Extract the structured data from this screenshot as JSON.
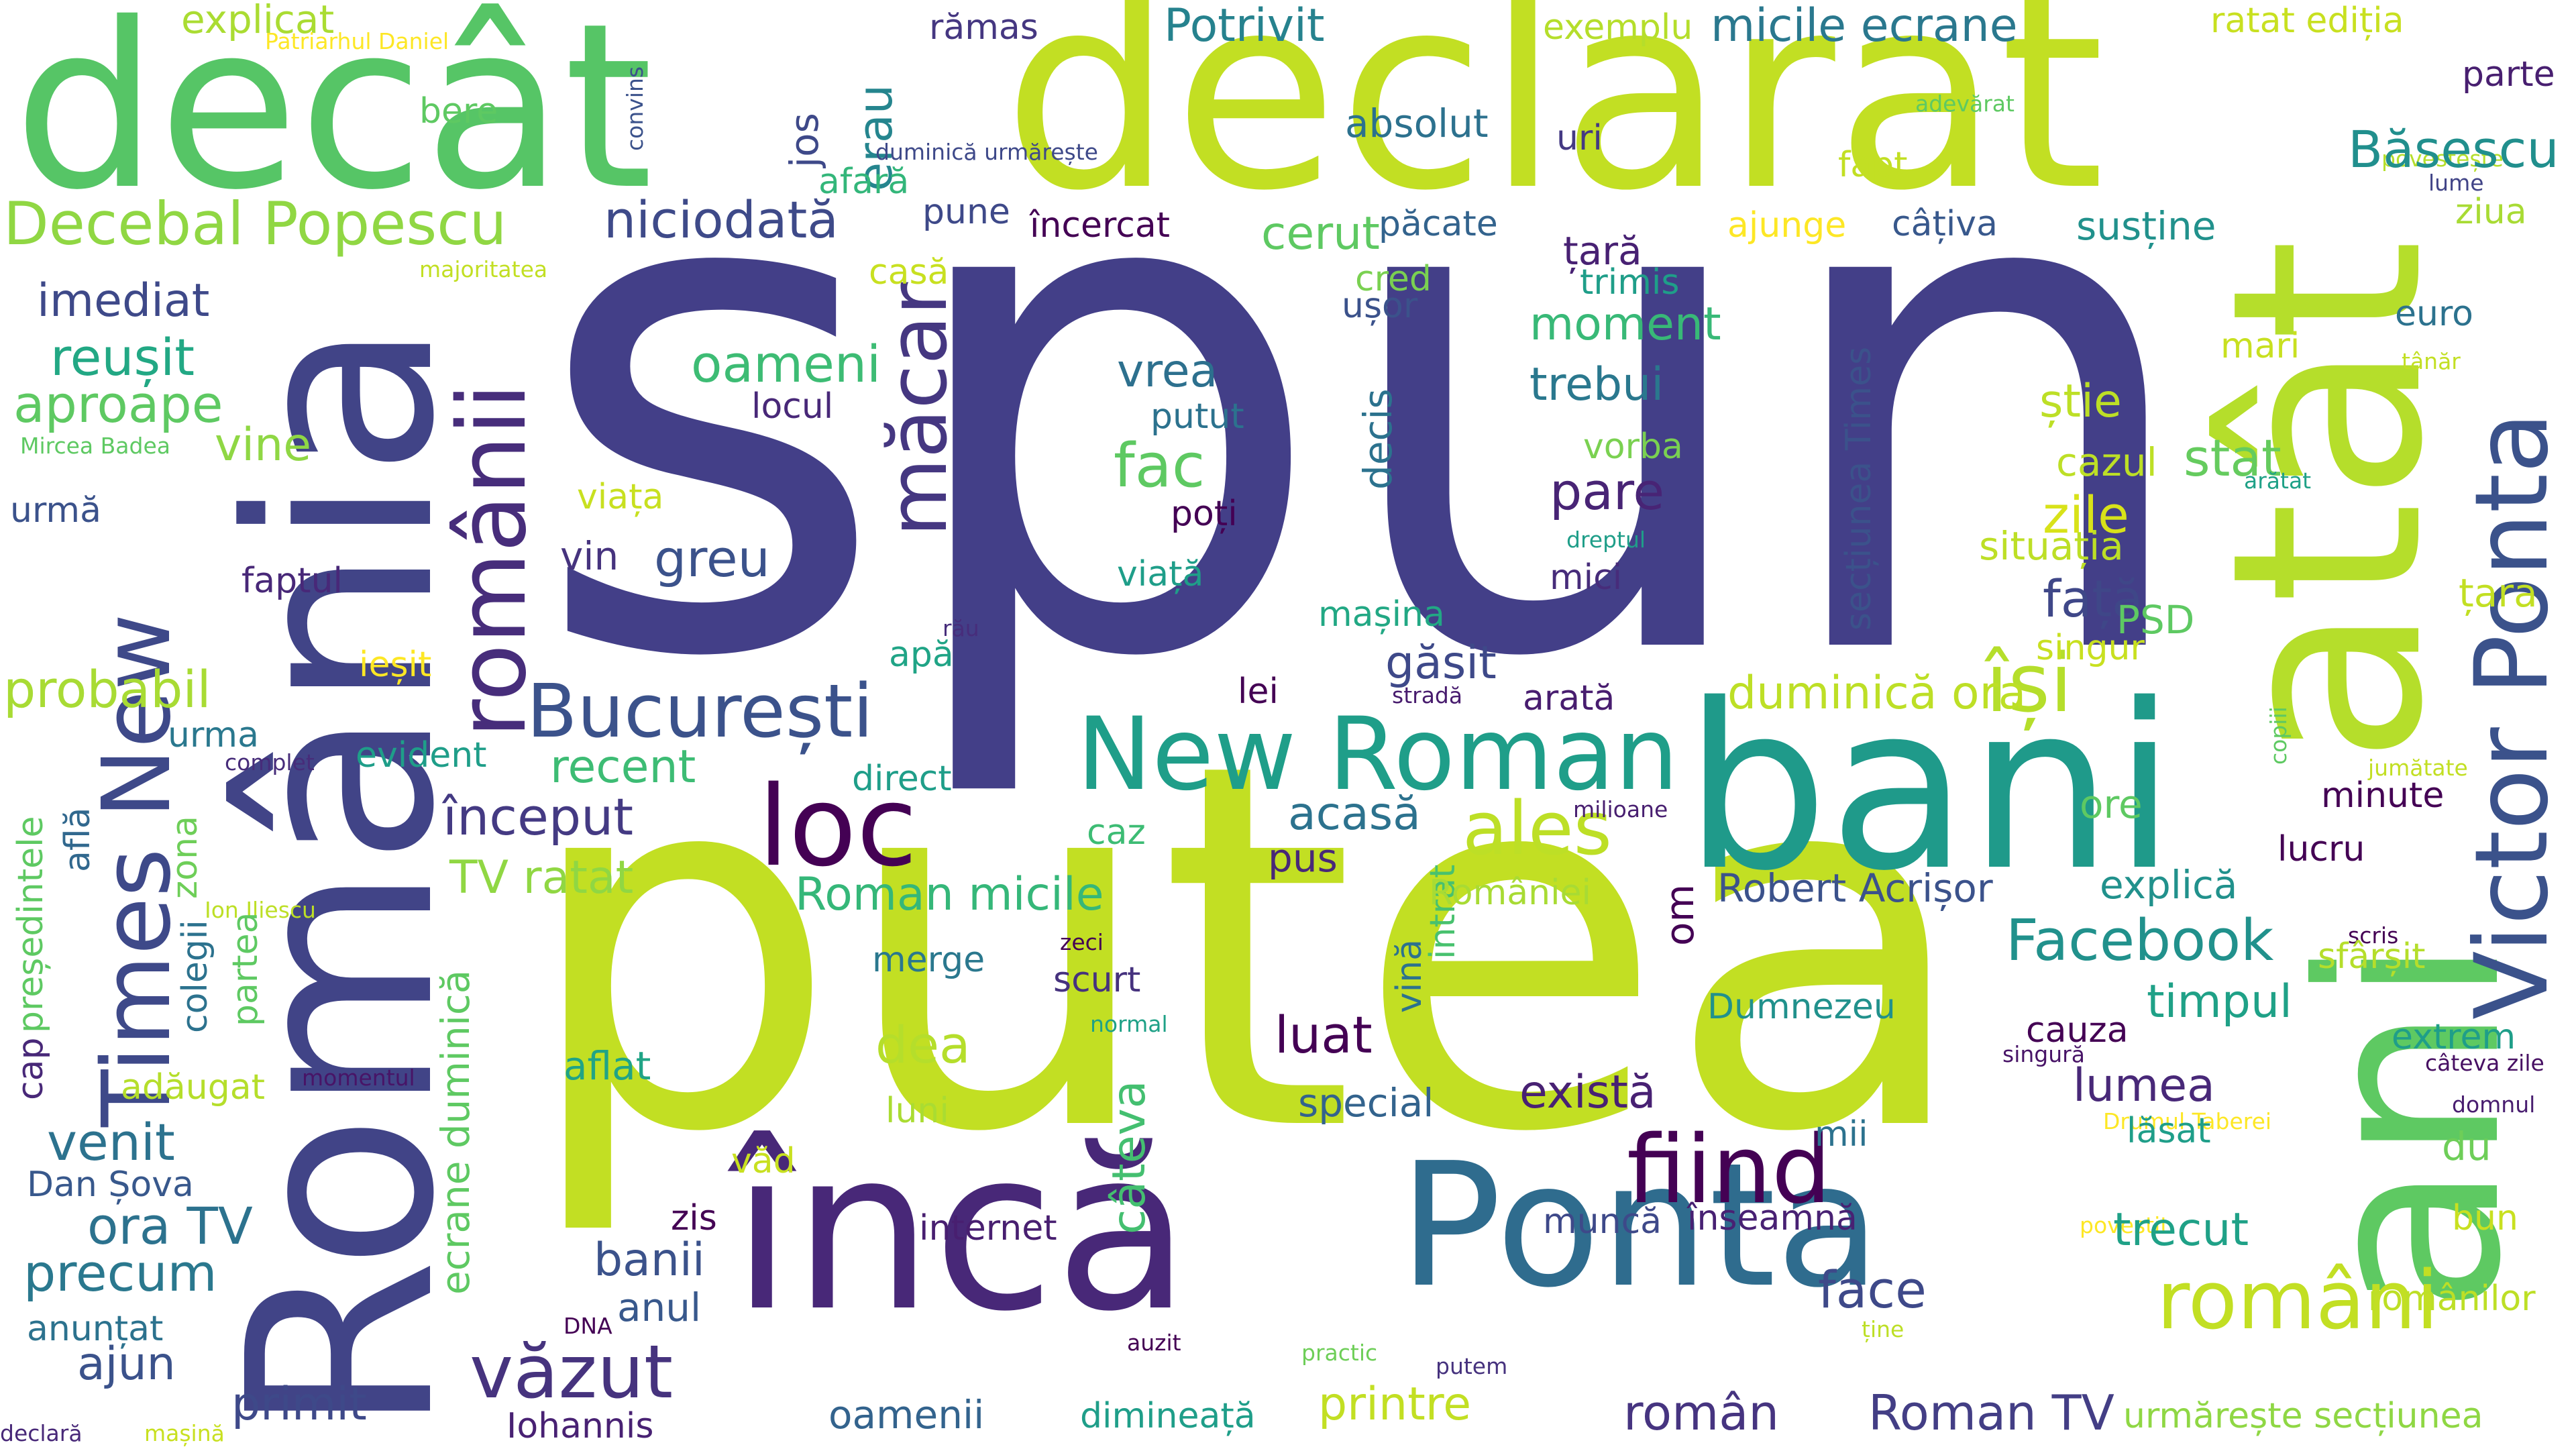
{
  "words": [
    {
      "text": "spun",
      "color": "#433f88"
    },
    {
      "text": "putea",
      "color": "#c2df23"
    },
    {
      "text": "declarat",
      "color": "#c2df23"
    },
    {
      "text": "decât",
      "color": "#56c566"
    },
    {
      "text": "România",
      "color": "#414487"
    },
    {
      "text": "atât",
      "color": "#b5de2b"
    },
    {
      "text": "ani",
      "color": "#5ec962"
    },
    {
      "text": "bani",
      "color": "#1f9a8a"
    },
    {
      "text": "încă",
      "color": "#482878"
    },
    {
      "text": "Ponta",
      "color": "#2f6c8e"
    },
    {
      "text": "New Roman",
      "color": "#1f9e89"
    },
    {
      "text": "Victor Ponta",
      "color": "#3b528b"
    },
    {
      "text": "Times New",
      "color": "#3e4989"
    },
    {
      "text": "românii",
      "color": "#472d7b"
    },
    {
      "text": "loc",
      "color": "#440154"
    },
    {
      "text": "fiind",
      "color": "#440154"
    },
    {
      "text": "români",
      "color": "#c2df23"
    },
    {
      "text": "București",
      "color": "#3b528b"
    },
    {
      "text": "Decebal Popescu",
      "color": "#90d743"
    },
    {
      "text": "văzut",
      "color": "#46337e"
    },
    {
      "text": "măcar",
      "color": "#453781"
    },
    {
      "text": "își",
      "color": "#b5de2b"
    },
    {
      "text": "ales",
      "color": "#bddf26"
    },
    {
      "text": "român",
      "color": "#463480"
    },
    {
      "text": "Roman TV",
      "color": "#433e85"
    },
    {
      "text": "Facebook",
      "color": "#21918c"
    },
    {
      "text": "niciodată",
      "color": "#3e4a89"
    },
    {
      "text": "explicat",
      "color": "#aadc32"
    },
    {
      "text": "Patriarhul Daniel",
      "color": "#fde725"
    },
    {
      "text": "jos",
      "color": "#3e4989"
    },
    {
      "text": "erau",
      "color": "#25858e"
    },
    {
      "text": "rămas",
      "color": "#453781"
    },
    {
      "text": "Potrivit",
      "color": "#26828e"
    },
    {
      "text": "exemplu",
      "color": "#b5de2b"
    },
    {
      "text": "micile ecrane",
      "color": "#2a788e"
    },
    {
      "text": "ratat ediția",
      "color": "#c8e020"
    },
    {
      "text": "parte",
      "color": "#481f70"
    },
    {
      "text": "convins",
      "color": "#3b528b"
    },
    {
      "text": "adevărat",
      "color": "#5ec962"
    },
    {
      "text": "povestește",
      "color": "#b5de2b"
    },
    {
      "text": "lume",
      "color": "#414487"
    },
    {
      "text": "Băsescu",
      "color": "#218f8d"
    },
    {
      "text": "bere",
      "color": "#5ec962"
    },
    {
      "text": "duminică urmărește",
      "color": "#3e4989"
    },
    {
      "text": "afară",
      "color": "#33b67a"
    },
    {
      "text": "absolut",
      "color": "#2c718e"
    },
    {
      "text": "uri",
      "color": "#443983"
    },
    {
      "text": "fapt",
      "color": "#c2df23"
    },
    {
      "text": "ziua",
      "color": "#a8db34"
    },
    {
      "text": "pune",
      "color": "#3e4989"
    },
    {
      "text": "încercat",
      "color": "#440154"
    },
    {
      "text": "cerut",
      "color": "#5ec962"
    },
    {
      "text": "păcate",
      "color": "#33638d"
    },
    {
      "text": "ajunge",
      "color": "#fde725"
    },
    {
      "text": "câțiva",
      "color": "#38588c"
    },
    {
      "text": "susține",
      "color": "#21918c"
    },
    {
      "text": "majoritatea",
      "color": "#c2df23"
    },
    {
      "text": "casă",
      "color": "#c8e020"
    },
    {
      "text": "țară",
      "color": "#482173"
    },
    {
      "text": "cred",
      "color": "#7ad151"
    },
    {
      "text": "ușor",
      "color": "#3b528b"
    },
    {
      "text": "trimis",
      "color": "#1f9e89"
    },
    {
      "text": "euro",
      "color": "#2c728e"
    },
    {
      "text": "imediat",
      "color": "#3e4989"
    },
    {
      "text": "secțiunea Times",
      "color": "#3b528b"
    },
    {
      "text": "tânăr",
      "color": "#c2df23"
    },
    {
      "text": "reușit",
      "color": "#22a884"
    },
    {
      "text": "moment",
      "color": "#38b977"
    },
    {
      "text": "mari",
      "color": "#c8e020"
    },
    {
      "text": "oameni",
      "color": "#3dbc74"
    },
    {
      "text": "aproape",
      "color": "#5ec962"
    },
    {
      "text": "vrea",
      "color": "#2d708e"
    },
    {
      "text": "trebui",
      "color": "#2a788e"
    },
    {
      "text": "locul",
      "color": "#482878"
    },
    {
      "text": "știe",
      "color": "#bddf26"
    },
    {
      "text": "vine",
      "color": "#8fd744"
    },
    {
      "text": "putut",
      "color": "#2c728e"
    },
    {
      "text": "Mircea Badea",
      "color": "#5ec962"
    },
    {
      "text": "fac",
      "color": "#5ec962"
    },
    {
      "text": "vorba",
      "color": "#7ad151"
    },
    {
      "text": "cazul",
      "color": "#bddf26"
    },
    {
      "text": "stat",
      "color": "#65cb5e"
    },
    {
      "text": "arătat",
      "color": "#1fa187"
    },
    {
      "text": "urmă",
      "color": "#3b528b"
    },
    {
      "text": "decis",
      "color": "#2c728e"
    },
    {
      "text": "pare",
      "color": "#482475"
    },
    {
      "text": "viața",
      "color": "#c8e020"
    },
    {
      "text": "poți",
      "color": "#440154"
    },
    {
      "text": "zile",
      "color": "#d8e219"
    },
    {
      "text": "dreptul",
      "color": "#1f9e89"
    },
    {
      "text": "situația",
      "color": "#bddf26"
    },
    {
      "text": "greu",
      "color": "#3b528b"
    },
    {
      "text": "vin",
      "color": "#46337e"
    },
    {
      "text": "viață",
      "color": "#1f9e89"
    },
    {
      "text": "mici",
      "color": "#472c7a"
    },
    {
      "text": "țara",
      "color": "#c2df23"
    },
    {
      "text": "faptul",
      "color": "#482878"
    },
    {
      "text": "față",
      "color": "#3f4788"
    },
    {
      "text": "PSD",
      "color": "#5ec962"
    },
    {
      "text": "rău",
      "color": "#472d7b"
    },
    {
      "text": "mașina",
      "color": "#22a884"
    },
    {
      "text": "singur",
      "color": "#c8e020"
    },
    {
      "text": "ieșit",
      "color": "#fde725"
    },
    {
      "text": "apă",
      "color": "#20a486"
    },
    {
      "text": "găsit",
      "color": "#3e4989"
    },
    {
      "text": "probabil",
      "color": "#a8db34"
    },
    {
      "text": "lei",
      "color": "#440154"
    },
    {
      "text": "stradă",
      "color": "#481c6e"
    },
    {
      "text": "arată",
      "color": "#481d6f"
    },
    {
      "text": "duminică ora",
      "color": "#bddf26"
    },
    {
      "text": "urma",
      "color": "#2a788e"
    },
    {
      "text": "copiii",
      "color": "#5ec962"
    },
    {
      "text": "jumătate",
      "color": "#c2df23"
    },
    {
      "text": "complet",
      "color": "#472c7a"
    },
    {
      "text": "evident",
      "color": "#1f9e89"
    },
    {
      "text": "recent",
      "color": "#3dbc74"
    },
    {
      "text": "direct",
      "color": "#1f9e89"
    },
    {
      "text": "milioane",
      "color": "#481f70"
    },
    {
      "text": "ore",
      "color": "#5ec962"
    },
    {
      "text": "minute",
      "color": "#440154"
    },
    {
      "text": "președintele",
      "color": "#5ec962"
    },
    {
      "text": "află",
      "color": "#31688e"
    },
    {
      "text": "zona",
      "color": "#6ece58"
    },
    {
      "text": "început",
      "color": "#443a83"
    },
    {
      "text": "acasă",
      "color": "#2c728e"
    },
    {
      "text": "caz",
      "color": "#3dbc74"
    },
    {
      "text": "pus",
      "color": "#482878"
    },
    {
      "text": "lucru",
      "color": "#440154"
    },
    {
      "text": "TV ratat",
      "color": "#90d743"
    },
    {
      "text": "colegii",
      "color": "#2c728e"
    },
    {
      "text": "Roman micile",
      "color": "#35b779"
    },
    {
      "text": "Ion Iliescu",
      "color": "#bddf26"
    },
    {
      "text": "intrat",
      "color": "#48c16e"
    },
    {
      "text": "vină",
      "color": "#2c728e"
    },
    {
      "text": "României",
      "color": "#a8db34"
    },
    {
      "text": "om",
      "color": "#440154"
    },
    {
      "text": "Robert Acrișor",
      "color": "#3b528b"
    },
    {
      "text": "explică",
      "color": "#21918c"
    },
    {
      "text": "scris",
      "color": "#440154"
    },
    {
      "text": "sfârșit",
      "color": "#b5de2b"
    },
    {
      "text": "partea",
      "color": "#5ec962"
    },
    {
      "text": "zeci",
      "color": "#440154"
    },
    {
      "text": "merge",
      "color": "#2a788e"
    },
    {
      "text": "scurt",
      "color": "#46327e"
    },
    {
      "text": "timpul",
      "color": "#1fa187"
    },
    {
      "text": "cap",
      "color": "#482878"
    },
    {
      "text": "normal",
      "color": "#1fa187"
    },
    {
      "text": "Dumnezeu",
      "color": "#21918c"
    },
    {
      "text": "cauza",
      "color": "#440154"
    },
    {
      "text": "extrem",
      "color": "#1f9e89"
    },
    {
      "text": "singură",
      "color": "#481467"
    },
    {
      "text": "câteva zile",
      "color": "#471063"
    },
    {
      "text": "dea",
      "color": "#b5de2b"
    },
    {
      "text": "luat",
      "color": "#440154"
    },
    {
      "text": "câteva",
      "color": "#44bf70"
    },
    {
      "text": "adăugat",
      "color": "#b5de2b"
    },
    {
      "text": "momentul",
      "color": "#481467"
    },
    {
      "text": "aflat",
      "color": "#20a486"
    },
    {
      "text": "special",
      "color": "#33638d"
    },
    {
      "text": "există",
      "color": "#482173"
    },
    {
      "text": "lumea",
      "color": "#482878"
    },
    {
      "text": "domnul",
      "color": "#481d6f"
    },
    {
      "text": "luni",
      "color": "#aadc32"
    },
    {
      "text": "Drumul Taberei",
      "color": "#fde725"
    },
    {
      "text": "lăsat",
      "color": "#1f9e89"
    },
    {
      "text": "venit",
      "color": "#2c728e"
    },
    {
      "text": "mii",
      "color": "#2c728e"
    },
    {
      "text": "du",
      "color": "#6ece58"
    },
    {
      "text": "Dan Șova",
      "color": "#38588c"
    },
    {
      "text": "văd",
      "color": "#c8e020"
    },
    {
      "text": "ecrane duminică",
      "color": "#5ec962"
    },
    {
      "text": "ora TV",
      "color": "#2c728e"
    },
    {
      "text": "zis",
      "color": "#440154"
    },
    {
      "text": "muncă",
      "color": "#3e4989"
    },
    {
      "text": "înseamnă",
      "color": "#482173"
    },
    {
      "text": "povestit",
      "color": "#fde725"
    },
    {
      "text": "bun",
      "color": "#c8e020"
    },
    {
      "text": "internet",
      "color": "#481f70"
    },
    {
      "text": "trecut",
      "color": "#1fa187"
    },
    {
      "text": "precum",
      "color": "#2a788e"
    },
    {
      "text": "banii",
      "color": "#3b528b"
    },
    {
      "text": "anul",
      "color": "#38588c"
    },
    {
      "text": "face",
      "color": "#3e4989"
    },
    {
      "text": "românilor",
      "color": "#bddf26"
    },
    {
      "text": "anunțat",
      "color": "#2c728e"
    },
    {
      "text": "DNA",
      "color": "#440154"
    },
    {
      "text": "ține",
      "color": "#bddf26"
    },
    {
      "text": "auzit",
      "color": "#440154"
    },
    {
      "text": "ajun",
      "color": "#3b528b"
    },
    {
      "text": "practic",
      "color": "#6ece58"
    },
    {
      "text": "putem",
      "color": "#46327e"
    },
    {
      "text": "primit",
      "color": "#3e4989"
    },
    {
      "text": "printre",
      "color": "#c2df23"
    },
    {
      "text": "urmărește secțiunea",
      "color": "#8fd744"
    },
    {
      "text": "Iohannis",
      "color": "#482173"
    },
    {
      "text": "oamenii",
      "color": "#33638d"
    },
    {
      "text": "dimineață",
      "color": "#1f9e89"
    },
    {
      "text": "declară",
      "color": "#482878"
    },
    {
      "text": "mașină",
      "color": "#c8e020"
    }
  ]
}
